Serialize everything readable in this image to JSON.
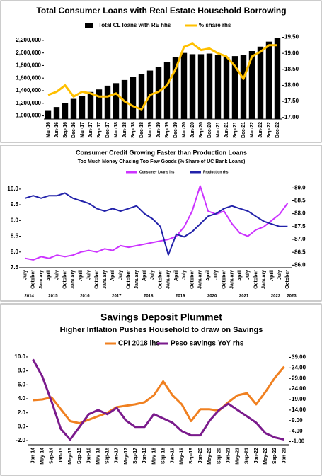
{
  "chart_data": [
    {
      "type": "combo",
      "title": "Total Consumer Loans with Real Estate Household Borrowing",
      "categories": [
        "Mar-16",
        "Jun-16",
        "Sep-16",
        "Dec-16",
        "Mar-17",
        "Jun-17",
        "Sep-17",
        "Dec-17",
        "Mar-18",
        "Jun-18",
        "Sep-18",
        "Dec-18",
        "Mar-19",
        "Jun-19",
        "Sep-19",
        "Dec-19",
        "Mar-20",
        "Jun-20",
        "Sep-20",
        "Dec-20",
        "Mar-21",
        "Jun-21",
        "Sep-21",
        "Dec-21",
        "Mar-22",
        "Jun-22",
        "Sep-22",
        "Dec-22"
      ],
      "series": [
        {
          "name": "Total CL loans with RE hhs",
          "color": "#000000",
          "kind": "bar",
          "values": [
            1090000,
            1140000,
            1200000,
            1270000,
            1310000,
            1380000,
            1420000,
            1480000,
            1520000,
            1570000,
            1620000,
            1670000,
            1720000,
            1780000,
            1850000,
            1930000,
            2000000,
            1980000,
            1980000,
            1990000,
            1970000,
            1940000,
            1950000,
            1970000,
            2030000,
            2100000,
            2180000,
            2240000
          ]
        },
        {
          "name": "% share rhs",
          "color": "#ffc000",
          "kind": "line",
          "axis": "y2",
          "values": [
            17.7,
            17.8,
            18.0,
            17.65,
            17.8,
            17.75,
            17.65,
            17.65,
            17.75,
            17.5,
            17.35,
            17.25,
            17.7,
            17.8,
            18.0,
            18.5,
            19.2,
            19.3,
            19.1,
            19.15,
            19.0,
            18.9,
            18.6,
            18.2,
            18.9,
            19.05,
            19.25,
            19.25
          ]
        }
      ],
      "ylim": [
        950000,
        2300000
      ],
      "yticks": [
        {
          "value": 1000000,
          "label": "1,000,000"
        },
        {
          "value": 1200000,
          "label": "1,200,000"
        },
        {
          "value": 1400000,
          "label": "1,400,000"
        },
        {
          "value": 1600000,
          "label": "1,600,000"
        },
        {
          "value": 1800000,
          "label": "1,800,000"
        },
        {
          "value": 2000000,
          "label": "2,000,000"
        },
        {
          "value": 2200000,
          "label": "2,200,000"
        }
      ],
      "y2lim": [
        16.95,
        19.6
      ],
      "y2ticks": [
        {
          "value": 17,
          "label": "17.00"
        },
        {
          "value": 17.5,
          "label": "17.50"
        },
        {
          "value": 18,
          "label": "18.00"
        },
        {
          "value": 18.5,
          "label": "18.50"
        },
        {
          "value": 19,
          "label": "19.00"
        },
        {
          "value": 19.5,
          "label": "19.50"
        }
      ]
    },
    {
      "type": "line",
      "title": "Consumer Credit Growing Faster than Production Loans",
      "subtitle": "Too Much Money Chasing Too Few Goods (% Share of UC Bank Loans)",
      "categories": [
        "July",
        "October",
        "January",
        "April",
        "July",
        "October",
        "January",
        "April",
        "July",
        "October",
        "January",
        "April",
        "July",
        "October",
        "January",
        "April",
        "July",
        "October",
        "January",
        "April",
        "July",
        "October",
        "January",
        "April",
        "July",
        "October",
        "January",
        "April",
        "July",
        "October",
        "January",
        "April",
        "July",
        "October"
      ],
      "years": [
        "2014",
        "2015",
        "2016",
        "2017",
        "2018",
        "2019",
        "2020",
        "2021",
        "2022",
        "2023"
      ],
      "series": [
        {
          "name": "Consumer Loans lhs",
          "color": "#cc33ff",
          "values": [
            7.8,
            7.75,
            7.85,
            7.8,
            7.9,
            7.85,
            7.9,
            8.0,
            8.05,
            8.0,
            8.1,
            8.05,
            8.2,
            8.15,
            8.2,
            8.25,
            8.3,
            8.35,
            8.4,
            8.5,
            8.8,
            9.3,
            10.1,
            9.3,
            9.2,
            9.3,
            8.9,
            8.6,
            8.5,
            8.7,
            8.8,
            9.0,
            9.2,
            9.55
          ]
        },
        {
          "name": "Production rhs",
          "color": "#2222aa",
          "axis": "y2",
          "values": [
            88.6,
            88.7,
            88.6,
            88.7,
            88.7,
            88.8,
            88.6,
            88.5,
            88.4,
            88.2,
            88.1,
            88.2,
            88.1,
            88.2,
            88.3,
            88.0,
            87.8,
            87.5,
            86.4,
            87.2,
            87.1,
            87.3,
            87.6,
            87.9,
            88.0,
            88.2,
            88.3,
            88.2,
            88.1,
            87.9,
            87.7,
            87.6,
            87.5,
            87.5
          ]
        }
      ],
      "ylim": [
        7.5,
        10.2
      ],
      "yticks": [
        7.5,
        {
          "value": 8,
          "label": "8.0"
        },
        8.5,
        {
          "value": 9,
          "label": "9.0"
        },
        9.5,
        {
          "value": 10,
          "label": "10.0"
        }
      ],
      "y2lim": [
        85.9,
        89.2
      ],
      "y2ticks": [
        {
          "value": 86,
          "label": "86.0"
        },
        86.5,
        {
          "value": 87,
          "label": "87.0"
        },
        87.5,
        {
          "value": 88,
          "label": "88.0"
        },
        88.5,
        {
          "value": 89,
          "label": "89.0"
        }
      ]
    },
    {
      "type": "line",
      "title": "Savings Deposit Plummet",
      "subtitle": "Higher Inflation Pushes Household to draw on Savings",
      "categories": [
        "Jan-14",
        "May-14",
        "Sep-14",
        "Jan-15",
        "May-15",
        "Sep-15",
        "Jan-16",
        "May-16",
        "Sep-16",
        "Jan-17",
        "May-17",
        "Sep-17",
        "Jan-18",
        "May-18",
        "Sep-18",
        "Jan-19",
        "May-19",
        "Sep-19",
        "Jan-20",
        "May-20",
        "Sep-20",
        "Jan-21",
        "May-21",
        "Sep-21",
        "Jan-22",
        "May-22",
        "Sep-22",
        "Jan-23"
      ],
      "series": [
        {
          "name": "CPI 2018 lhs",
          "color": "#f08020",
          "values": [
            3.8,
            3.9,
            4.2,
            2.5,
            0.8,
            0.5,
            1.0,
            1.5,
            2.0,
            2.8,
            3.0,
            3.2,
            3.5,
            4.5,
            6.5,
            4.5,
            3.2,
            0.8,
            2.5,
            2.5,
            2.3,
            3.5,
            4.5,
            4.8,
            3.2,
            5.0,
            7.0,
            8.6
          ]
        },
        {
          "name": "Peso savings YoY rhs",
          "color": "#7a1a8c",
          "axis": "y2",
          "values": [
            38,
            30,
            18,
            5,
            0,
            6,
            12,
            14,
            12,
            15,
            9,
            6,
            6,
            12,
            10,
            8,
            4,
            2,
            2,
            9,
            14,
            17,
            14,
            11,
            8,
            3,
            1,
            0
          ]
        }
      ],
      "ylim": [
        -2.6,
        10.4
      ],
      "yticks": [
        {
          "value": -2,
          "label": "-2.0"
        },
        {
          "value": 0,
          "label": "0.0"
        },
        {
          "value": 2,
          "label": "2.0"
        },
        {
          "value": 4,
          "label": "4.0"
        },
        {
          "value": 6,
          "label": "6.0"
        },
        {
          "value": 8,
          "label": "8.0"
        },
        {
          "value": 10,
          "label": "10.0"
        }
      ],
      "y2lim": [
        -2.5,
        40.5
      ],
      "y2ticks": [
        {
          "value": -1,
          "label": "-1.00"
        },
        {
          "value": 4,
          "label": "4.00"
        },
        {
          "value": 9,
          "label": "9.00"
        },
        {
          "value": 14,
          "label": "14.00"
        },
        {
          "value": 19,
          "label": "19.00"
        },
        {
          "value": 24,
          "label": "24.00"
        },
        {
          "value": 29,
          "label": "29.00"
        },
        {
          "value": 34,
          "label": "34.00"
        },
        {
          "value": 39,
          "label": "39.00"
        }
      ]
    }
  ]
}
